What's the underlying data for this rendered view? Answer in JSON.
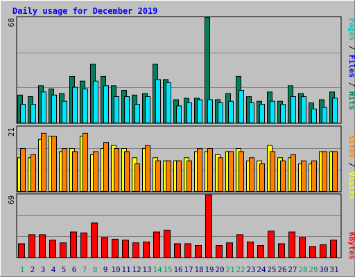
{
  "colors": {
    "background": "#c0c0c0",
    "title": "#0000ff",
    "hits": "#00e6ff",
    "files": "#008060",
    "pages": "#00c0c0",
    "visits": "#ffff00",
    "sites": "#ff8000",
    "kbytes": "#ff0000",
    "weekend_day": "#00a060",
    "weekday": "#000080"
  },
  "chart_data": [
    {
      "type": "bar",
      "title": "Daily usage for December 2019",
      "ylabel_top": "68",
      "legend": [
        "Pages",
        "Files",
        "Hits"
      ],
      "legend_colors": [
        "#00c0c0",
        "#0000ff",
        "#008060"
      ],
      "categories": [
        "1",
        "2",
        "3",
        "4",
        "5",
        "6",
        "7",
        "8",
        "9",
        "10",
        "11",
        "12",
        "13",
        "14",
        "15",
        "16",
        "17",
        "18",
        "19",
        "20",
        "21",
        "22",
        "23",
        "24",
        "25",
        "26",
        "27",
        "28",
        "29",
        "30",
        "31"
      ],
      "ylim": [
        0,
        68
      ],
      "series": [
        {
          "name": "Files",
          "color": "#008060",
          "values": [
            18,
            17,
            24,
            22,
            19,
            30,
            27,
            38,
            30,
            24,
            21,
            18,
            19,
            38,
            28,
            15,
            16,
            16,
            68,
            15,
            19,
            30,
            17,
            14,
            20,
            14,
            24,
            19,
            13,
            15,
            20
          ]
        },
        {
          "name": "Hits",
          "color": "#00e6ff",
          "values": [
            12,
            12,
            20,
            18,
            14,
            23,
            22,
            27,
            24,
            17,
            17,
            12,
            17,
            28,
            26,
            11,
            13,
            15,
            15,
            13,
            14,
            21,
            13,
            12,
            14,
            12,
            17,
            17,
            9,
            10,
            16
          ]
        }
      ]
    },
    {
      "type": "bar",
      "ylabel_top": "21",
      "legend": [
        "Sites",
        "Visits"
      ],
      "legend_colors": [
        "#ff8000",
        "#ffff00"
      ],
      "categories": [
        "1",
        "2",
        "3",
        "4",
        "5",
        "6",
        "7",
        "8",
        "9",
        "10",
        "11",
        "12",
        "13",
        "14",
        "15",
        "16",
        "17",
        "18",
        "19",
        "20",
        "21",
        "22",
        "23",
        "24",
        "25",
        "26",
        "27",
        "28",
        "29",
        "30",
        "31"
      ],
      "ylim": [
        0,
        21
      ],
      "series": [
        {
          "name": "Visits",
          "color": "#ffff00",
          "values": [
            11,
            11,
            17,
            18,
            13,
            14,
            18,
            12,
            14,
            15,
            14,
            11,
            14,
            11,
            10,
            10,
            11,
            13,
            13,
            12,
            13,
            14,
            10,
            10,
            15,
            11,
            11,
            9,
            9,
            13,
            13
          ]
        },
        {
          "name": "Sites",
          "color": "#ff8000",
          "values": [
            14,
            12,
            19,
            18,
            14,
            13,
            19,
            13,
            16,
            14,
            13,
            9,
            15,
            10,
            10,
            10,
            10,
            14,
            14,
            11,
            13,
            13,
            11,
            9,
            13,
            10,
            12,
            10,
            10,
            13,
            13
          ]
        }
      ]
    },
    {
      "type": "bar",
      "ylabel_top": "69",
      "legend": [
        "KBytes"
      ],
      "legend_colors": [
        "#ff0000"
      ],
      "categories": [
        "1",
        "2",
        "3",
        "4",
        "5",
        "6",
        "7",
        "8",
        "9",
        "10",
        "11",
        "12",
        "13",
        "14",
        "15",
        "16",
        "17",
        "18",
        "19",
        "20",
        "21",
        "22",
        "23",
        "24",
        "25",
        "26",
        "27",
        "28",
        "29",
        "30",
        "31"
      ],
      "ylim": [
        0,
        69
      ],
      "series": [
        {
          "name": "KBytes",
          "color": "#ff0000",
          "values": [
            15,
            25,
            25,
            19,
            16,
            28,
            27,
            38,
            22,
            20,
            19,
            16,
            17,
            28,
            30,
            15,
            15,
            13,
            69,
            13,
            16,
            25,
            17,
            13,
            29,
            15,
            28,
            22,
            12,
            14,
            19
          ]
        }
      ]
    }
  ]
}
